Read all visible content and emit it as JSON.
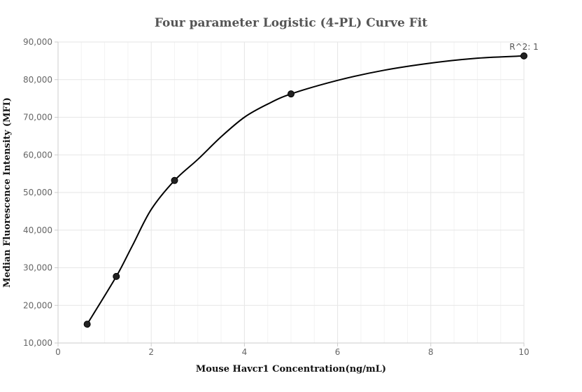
{
  "chart_data": {
    "type": "scatter",
    "title": "Four parameter Logistic (4-PL) Curve Fit",
    "xlabel": "Mouse Havcr1 Concentration(ng/mL)",
    "ylabel": "Median Fluorescence Intensity (MFI)",
    "xlim": [
      0,
      10
    ],
    "ylim": [
      10000,
      90000
    ],
    "x_ticks": [
      0,
      2,
      4,
      6,
      8,
      10
    ],
    "x_tick_labels": [
      "0",
      "2",
      "4",
      "6",
      "8",
      "10"
    ],
    "y_ticks": [
      10000,
      20000,
      30000,
      40000,
      50000,
      60000,
      70000,
      80000,
      90000
    ],
    "y_tick_labels": [
      "10,000",
      "20,000",
      "30,000",
      "40,000",
      "50,000",
      "60,000",
      "70,000",
      "80,000",
      "90,000"
    ],
    "grid": true,
    "points": [
      {
        "x": 0.625,
        "y": 15000
      },
      {
        "x": 1.25,
        "y": 27700
      },
      {
        "x": 2.5,
        "y": 53200
      },
      {
        "x": 5,
        "y": 76200
      },
      {
        "x": 10,
        "y": 86300
      }
    ],
    "curve": [
      {
        "x": 0.625,
        "y": 15000
      },
      {
        "x": 1.25,
        "y": 27700
      },
      {
        "x": 1.6,
        "y": 36000
      },
      {
        "x": 2.0,
        "y": 45500
      },
      {
        "x": 2.5,
        "y": 53200
      },
      {
        "x": 3.0,
        "y": 58800
      },
      {
        "x": 3.5,
        "y": 64800
      },
      {
        "x": 4.0,
        "y": 70000
      },
      {
        "x": 4.5,
        "y": 73500
      },
      {
        "x": 5.0,
        "y": 76200
      },
      {
        "x": 6.0,
        "y": 79800
      },
      {
        "x": 7.0,
        "y": 82500
      },
      {
        "x": 8.0,
        "y": 84400
      },
      {
        "x": 9.0,
        "y": 85700
      },
      {
        "x": 10.0,
        "y": 86300
      }
    ],
    "annotation": "R^2: 1"
  }
}
